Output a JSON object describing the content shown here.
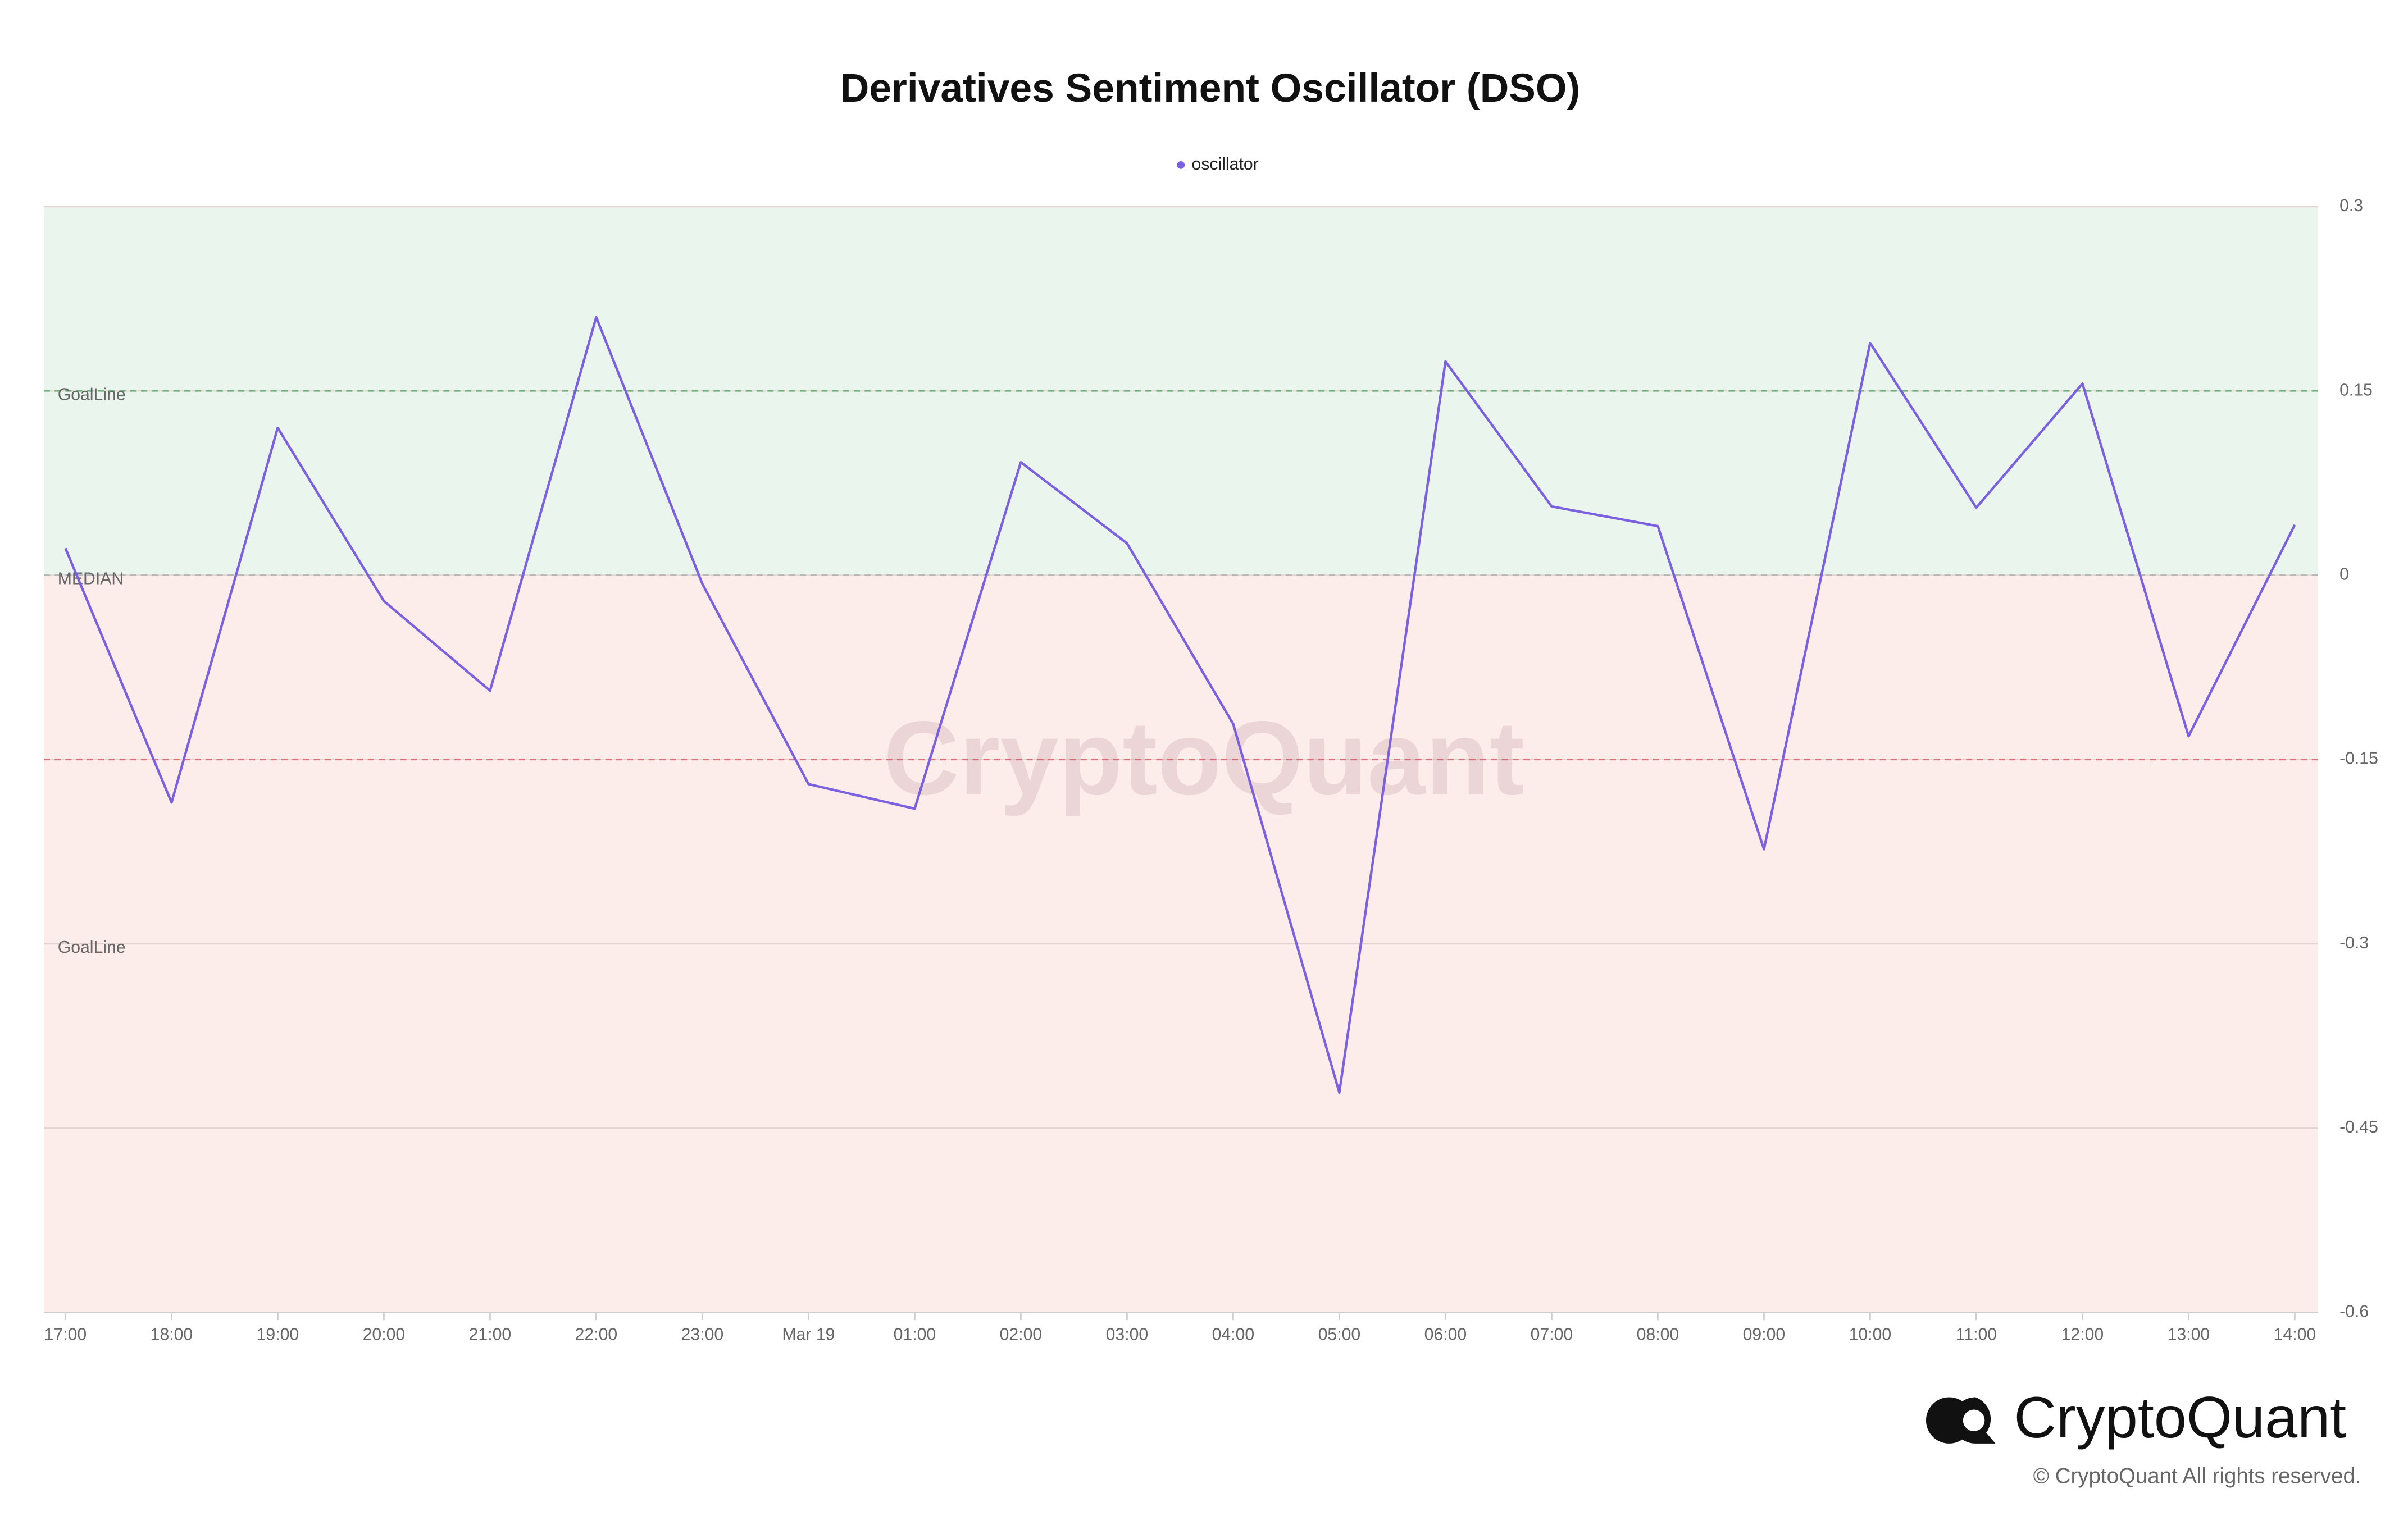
{
  "chart_data": {
    "type": "line",
    "title": "Derivatives Sentiment Oscillator (DSO)",
    "categories": [
      "17:00",
      "18:00",
      "19:00",
      "20:00",
      "21:00",
      "22:00",
      "23:00",
      "Mar 19",
      "01:00",
      "02:00",
      "03:00",
      "04:00",
      "05:00",
      "06:00",
      "07:00",
      "08:00",
      "09:00",
      "10:00",
      "11:00",
      "12:00",
      "13:00",
      "14:00"
    ],
    "series": [
      {
        "name": "oscillator",
        "color": "#7b61e0",
        "values": [
          0.022,
          -0.185,
          0.12,
          -0.021,
          -0.094,
          0.21,
          -0.007,
          -0.17,
          -0.19,
          0.092,
          0.026,
          -0.121,
          -0.421,
          0.174,
          0.056,
          0.04,
          -0.223,
          0.189,
          0.055,
          0.156,
          -0.131,
          0.041
        ]
      }
    ],
    "ylim": [
      -0.6,
      0.3
    ],
    "yticks": [
      0.3,
      0.15,
      0,
      -0.15,
      -0.3,
      -0.45,
      -0.6
    ],
    "grid": true,
    "legend": "top",
    "zones": [
      {
        "from": 0,
        "to": 0.3,
        "color": "#eaf5ee"
      },
      {
        "from": -0.6,
        "to": 0,
        "color": "#fcecea"
      }
    ],
    "reference_lines": [
      {
        "value": 0.15,
        "color": "#6fb27a"
      },
      {
        "value": 0,
        "color": "#b5b5b5"
      },
      {
        "value": -0.15,
        "color": "#d8707a"
      }
    ],
    "annotations": [
      {
        "text": "GoalLine",
        "y": 0.15
      },
      {
        "text": "MEDIAN",
        "y": 0
      },
      {
        "text": "GoalLine",
        "y": -0.3
      }
    ],
    "watermark": "CryptoQuant",
    "brand": "CryptoQuant",
    "copyright": "© CryptoQuant All rights reserved."
  }
}
